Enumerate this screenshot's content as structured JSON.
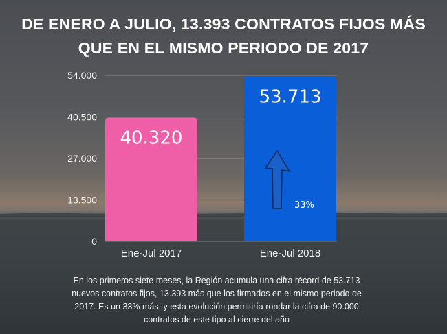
{
  "title_lines": [
    "DE ENERO A JULIO, 13.393 CONTRATOS FIJOS MÁS",
    "QUE EN EL MISMO PERIODO DE  2017"
  ],
  "chart_data": {
    "type": "bar",
    "categories": [
      "Ene-Jul 2017",
      "Ene-Jul 2018"
    ],
    "values": [
      40320,
      53713
    ],
    "data_labels": [
      "40.320",
      "53.713"
    ],
    "colors": [
      "#ef5fa7",
      "#0a5fd8"
    ],
    "ylim": [
      0,
      54000
    ],
    "yticks": [
      0,
      13500,
      27000,
      40500,
      54000
    ],
    "ytick_labels": [
      "0",
      "13.500",
      "27.000",
      "40.500",
      "54.000"
    ],
    "grid": true,
    "annotation": {
      "icon": "up-arrow-icon",
      "text": "33%"
    }
  },
  "caption": "En los primeros siete meses, la Región acumula una cifra récord de 53.713 nuevos contratos fijos, 13.393 más que los firmados en el mismo periodo de 2017. Es un 33% más, y esta evolución permitiría rondar la cifra de 90.000 contratos de este tipo al cierre del año"
}
